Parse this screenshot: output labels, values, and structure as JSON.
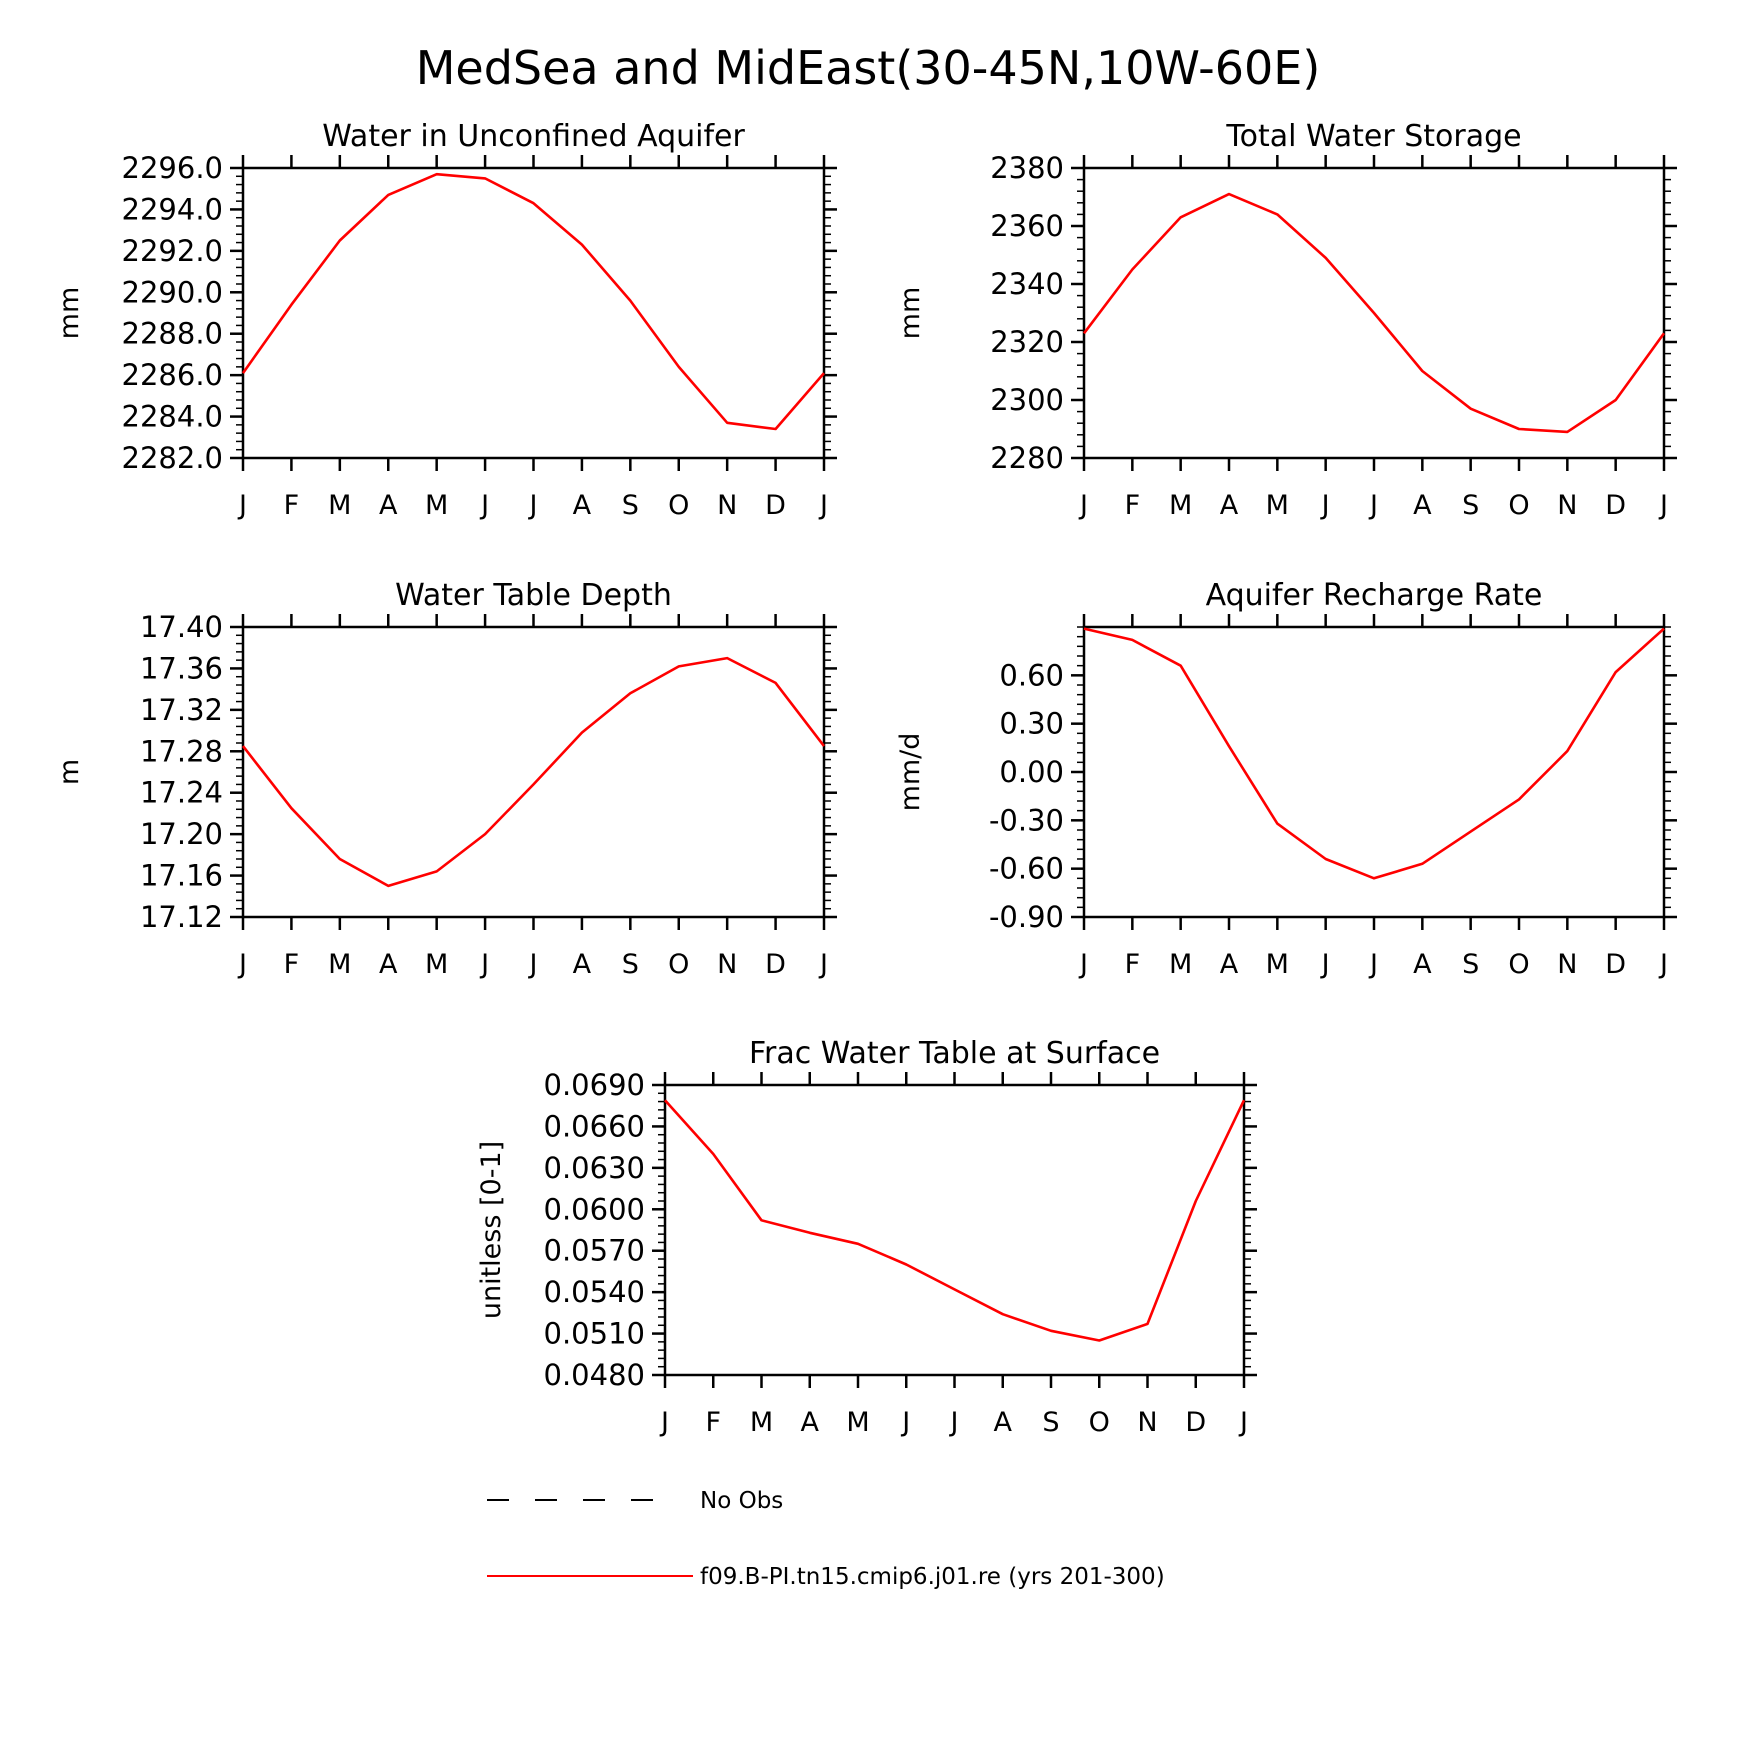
{
  "title": "MedSea and MidEast(30-45N,10W-60E)",
  "months": [
    "J",
    "F",
    "M",
    "A",
    "M",
    "J",
    "J",
    "A",
    "S",
    "O",
    "N",
    "D",
    "J"
  ],
  "colors": {
    "model": "#ff0000",
    "obs": "#000000",
    "axes": "#000000"
  },
  "legend": {
    "obs_label": "No Obs",
    "model_label": "f09.B-PI.tn15.cmip6.j01.re (yrs 201-300)"
  },
  "chart_data": [
    {
      "type": "line",
      "title": "Water in Unconfined Aquifer",
      "ylabel": "mm",
      "ylim": [
        2282.0,
        2296.0
      ],
      "yticks": [
        2282,
        2284,
        2286,
        2288,
        2290,
        2292,
        2294,
        2296
      ],
      "ytick_labels": [
        "2282.0",
        "2284.0",
        "2286.0",
        "2288.0",
        "2290.0",
        "2292.0",
        "2294.0",
        "2296.0"
      ],
      "categories": [
        "J",
        "F",
        "M",
        "A",
        "M",
        "J",
        "J",
        "A",
        "S",
        "O",
        "N",
        "D",
        "J"
      ],
      "series": [
        {
          "name": "f09.B-PI.tn15.cmip6.j01.re (yrs 201-300)",
          "values": [
            2286.1,
            2289.4,
            2292.5,
            2294.7,
            2295.7,
            2295.5,
            2294.3,
            2292.3,
            2289.6,
            2286.4,
            2283.7,
            2283.4,
            2286.1
          ]
        }
      ]
    },
    {
      "type": "line",
      "title": "Total Water Storage",
      "ylabel": "mm",
      "ylim": [
        2280,
        2380
      ],
      "yticks": [
        2280,
        2300,
        2320,
        2340,
        2360,
        2380
      ],
      "ytick_labels": [
        "2280",
        "2300",
        "2320",
        "2340",
        "2360",
        "2380"
      ],
      "categories": [
        "J",
        "F",
        "M",
        "A",
        "M",
        "J",
        "J",
        "A",
        "S",
        "O",
        "N",
        "D",
        "J"
      ],
      "series": [
        {
          "name": "f09.B-PI.tn15.cmip6.j01.re (yrs 201-300)",
          "values": [
            2323,
            2345,
            2363,
            2371,
            2364,
            2349,
            2330,
            2310,
            2297,
            2290,
            2289,
            2300,
            2323
          ]
        }
      ]
    },
    {
      "type": "line",
      "title": "Water Table Depth",
      "ylabel": "m",
      "ylim": [
        17.12,
        17.4
      ],
      "yticks": [
        17.12,
        17.16,
        17.2,
        17.24,
        17.28,
        17.32,
        17.36,
        17.4
      ],
      "ytick_labels": [
        "17.12",
        "17.16",
        "17.20",
        "17.24",
        "17.28",
        "17.32",
        "17.36",
        "17.40"
      ],
      "categories": [
        "J",
        "F",
        "M",
        "A",
        "M",
        "J",
        "J",
        "A",
        "S",
        "O",
        "N",
        "D",
        "J"
      ],
      "series": [
        {
          "name": "f09.B-PI.tn15.cmip6.j01.re (yrs 201-300)",
          "values": [
            17.285,
            17.225,
            17.176,
            17.15,
            17.164,
            17.2,
            17.248,
            17.298,
            17.336,
            17.362,
            17.37,
            17.346,
            17.285
          ]
        }
      ]
    },
    {
      "type": "line",
      "title": "Aquifer Recharge Rate",
      "ylabel": "mm/d",
      "ylim": [
        -0.9,
        0.9
      ],
      "yticks": [
        -0.9,
        -0.6,
        -0.3,
        0.0,
        0.3,
        0.6
      ],
      "ytick_labels": [
        "-0.90",
        "-0.60",
        "-0.30",
        "0.00",
        "0.30",
        "0.60"
      ],
      "categories": [
        "J",
        "F",
        "M",
        "A",
        "M",
        "J",
        "J",
        "A",
        "S",
        "O",
        "N",
        "D",
        "J"
      ],
      "series": [
        {
          "name": "f09.B-PI.tn15.cmip6.j01.re (yrs 201-300)",
          "values": [
            0.89,
            0.82,
            0.66,
            0.16,
            -0.32,
            -0.54,
            -0.66,
            -0.57,
            -0.37,
            -0.17,
            0.13,
            0.62,
            0.89
          ]
        }
      ]
    },
    {
      "type": "line",
      "title": "Frac Water Table at Surface",
      "ylabel": "unitless [0-1]",
      "ylim": [
        0.048,
        0.069
      ],
      "yticks": [
        0.048,
        0.051,
        0.054,
        0.057,
        0.06,
        0.063,
        0.066,
        0.069
      ],
      "ytick_labels": [
        "0.0480",
        "0.0510",
        "0.0540",
        "0.0570",
        "0.0600",
        "0.0630",
        "0.0660",
        "0.0690"
      ],
      "categories": [
        "J",
        "F",
        "M",
        "A",
        "M",
        "J",
        "J",
        "A",
        "S",
        "O",
        "N",
        "D",
        "J"
      ],
      "series": [
        {
          "name": "f09.B-PI.tn15.cmip6.j01.re (yrs 201-300)",
          "values": [
            0.0679,
            0.064,
            0.0592,
            0.0583,
            0.0575,
            0.056,
            0.0542,
            0.0524,
            0.0512,
            0.0505,
            0.0517,
            0.0606,
            0.0679
          ]
        }
      ]
    }
  ]
}
